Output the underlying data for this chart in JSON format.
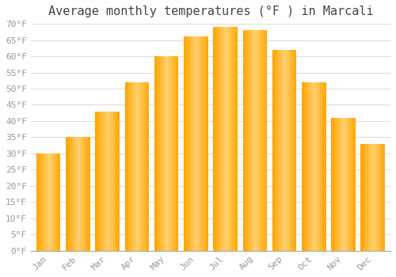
{
  "title": "Average monthly temperatures (°F ) in Marcali",
  "months": [
    "Jan",
    "Feb",
    "Mar",
    "Apr",
    "May",
    "Jun",
    "Jul",
    "Aug",
    "Sep",
    "Oct",
    "Nov",
    "Dec"
  ],
  "values": [
    30,
    35,
    43,
    52,
    60,
    66,
    69,
    68,
    62,
    52,
    41,
    33
  ],
  "bar_color_main": "#FFA500",
  "bar_color_light": "#FFD070",
  "ylim": [
    0,
    70
  ],
  "yticks": [
    0,
    5,
    10,
    15,
    20,
    25,
    30,
    35,
    40,
    45,
    50,
    55,
    60,
    65,
    70
  ],
  "ylabel_suffix": "°F",
  "background_color": "#FFFFFF",
  "grid_color": "#DDDDDD",
  "title_fontsize": 11,
  "tick_fontsize": 8,
  "font_family": "monospace",
  "tick_color": "#999999",
  "title_color": "#444444"
}
